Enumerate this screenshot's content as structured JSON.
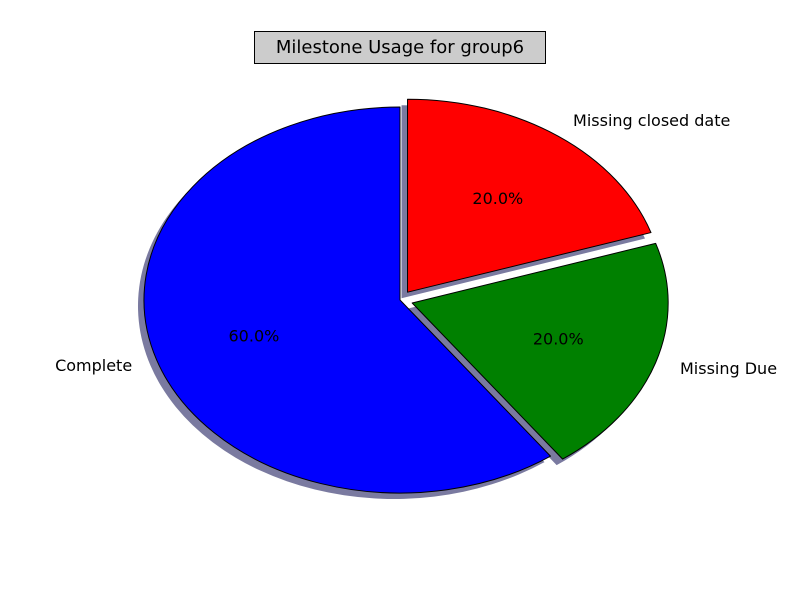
{
  "chart_data": {
    "type": "pie",
    "title": "Milestone Usage for group6",
    "slices": [
      {
        "label": "Missing closed date",
        "value": 20.0,
        "pct_label": "20.0%",
        "color": "#ff0000",
        "explode": 0.05
      },
      {
        "label": "Missing Due",
        "value": 20.0,
        "pct_label": "20.0%",
        "color": "#008000",
        "explode": 0.05
      },
      {
        "label": "Complete",
        "value": 60.0,
        "pct_label": "60.0%",
        "color": "#0000ff",
        "explode": 0
      }
    ],
    "start_angle": 90,
    "direction": "clockwise",
    "shadow": true,
    "legend": "none"
  },
  "colors": {
    "shadow": "#7a7aa0",
    "title_background": "#cccccc",
    "edge": "#000000"
  }
}
